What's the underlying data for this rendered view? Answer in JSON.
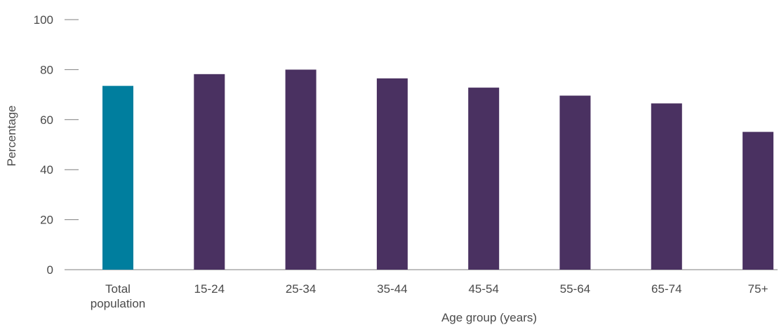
{
  "chart_data": {
    "type": "bar",
    "title": "",
    "xlabel": "Age group (years)",
    "ylabel": "Percentage",
    "ylim": [
      0,
      100
    ],
    "yticks": [
      0,
      20,
      40,
      60,
      80,
      100
    ],
    "grid": false,
    "legend": "none",
    "categories": [
      [
        "Total",
        "population"
      ],
      [
        "15-24"
      ],
      [
        "25-34"
      ],
      [
        "35-44"
      ],
      [
        "45-54"
      ],
      [
        "55-64"
      ],
      [
        "65-74"
      ],
      [
        "75+"
      ]
    ],
    "values": [
      73.5,
      78.2,
      80.0,
      76.5,
      72.8,
      69.6,
      66.5,
      55.1
    ],
    "bar_colors": [
      "#007e9e",
      "#4a3161",
      "#4a3161",
      "#4a3161",
      "#4a3161",
      "#4a3161",
      "#4a3161",
      "#4a3161"
    ],
    "axis_color": "#7f7f7f",
    "text_color": "#4a4a4a"
  }
}
